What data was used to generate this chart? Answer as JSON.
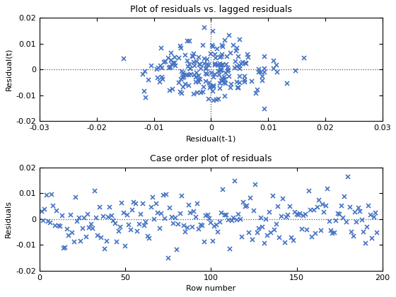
{
  "title1": "Plot of residuals vs. lagged residuals",
  "title2": "Case order plot of residuals",
  "xlabel1": "Residual(t-1)",
  "ylabel1": "Residual(t)",
  "xlabel2": "Row number",
  "ylabel2": "Residuals",
  "xlim1": [
    -0.03,
    0.03
  ],
  "ylim1": [
    -0.02,
    0.02
  ],
  "xlim2": [
    0,
    200
  ],
  "ylim2": [
    -0.02,
    0.02
  ],
  "marker_color": "#4472c4",
  "marker": "x",
  "markersize": 4,
  "markeredgewidth": 1.2,
  "hline_color": "#555555",
  "hline_style": ":",
  "vline_color": "#555555",
  "vline_style": ":",
  "n_points": 197,
  "seed": 42,
  "background_color": "#ffffff",
  "xticks1": [
    -0.03,
    -0.02,
    -0.01,
    0,
    0.01,
    0.02,
    0.03
  ],
  "yticks1": [
    -0.02,
    -0.01,
    0,
    0.01,
    0.02
  ],
  "xticks2": [
    0,
    50,
    100,
    150,
    200
  ],
  "yticks2": [
    -0.02,
    -0.01,
    0,
    0.01,
    0.02
  ],
  "title_fontsize": 9,
  "label_fontsize": 8,
  "tick_fontsize": 8
}
